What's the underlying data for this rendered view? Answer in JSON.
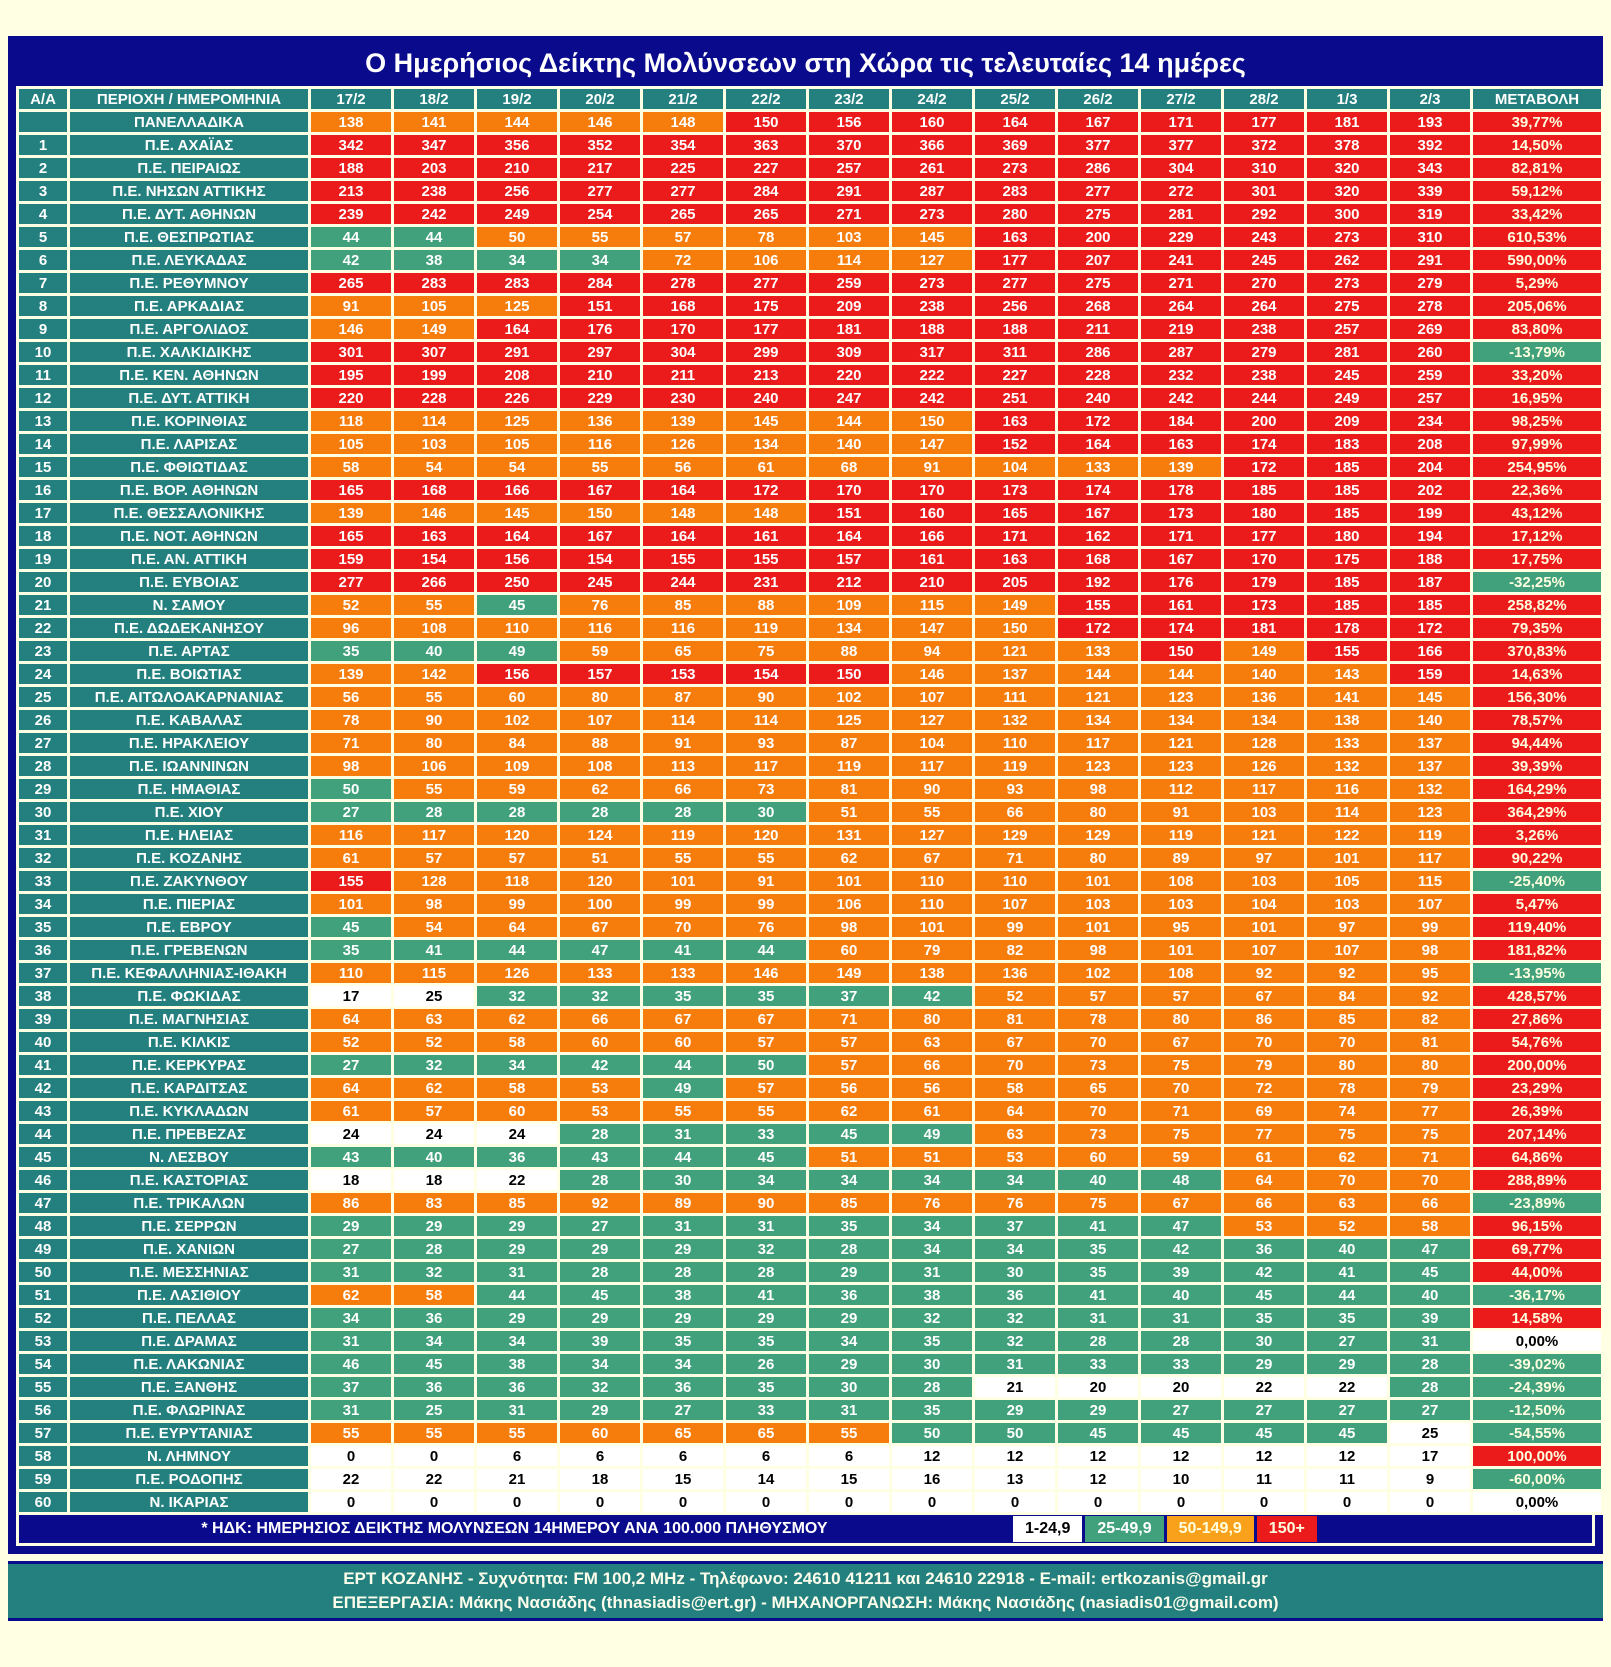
{
  "title": "Ο Ημερήσιος Δείκτης Μολύνσεων στη Χώρα τις τελευταίες 14 ημέρες",
  "columns": [
    "Α/Α",
    "ΠΕΡΙΟΧΗ / ΗΜΕΡΟΜΗΝΙΑ",
    "17/2",
    "18/2",
    "19/2",
    "20/2",
    "21/2",
    "22/2",
    "23/2",
    "24/2",
    "25/2",
    "26/2",
    "27/2",
    "28/2",
    "1/3",
    "2/3",
    "ΜΕΤΑΒΟΛΗ"
  ],
  "panel_row": {
    "label": "ΠΑΝΕΛΛΑΔΙΚΑ",
    "values": [
      138,
      141,
      144,
      146,
      148,
      150,
      156,
      160,
      164,
      167,
      171,
      177,
      181,
      193
    ],
    "change": "39,77%"
  },
  "rows": [
    {
      "n": 1,
      "region": "Π.Ε. ΑΧΑΪΑΣ",
      "values": [
        342,
        347,
        356,
        352,
        354,
        363,
        370,
        366,
        369,
        377,
        377,
        372,
        378,
        392
      ],
      "change": "14,50%"
    },
    {
      "n": 2,
      "region": "Π.Ε. ΠΕΙΡΑΙΩΣ",
      "values": [
        188,
        203,
        210,
        217,
        225,
        227,
        257,
        261,
        273,
        286,
        304,
        310,
        320,
        343
      ],
      "change": "82,81%"
    },
    {
      "n": 3,
      "region": "Π.Ε. ΝΗΣΩΝ ΑΤΤΙΚΗΣ",
      "values": [
        213,
        238,
        256,
        277,
        277,
        284,
        291,
        287,
        283,
        277,
        272,
        301,
        320,
        339
      ],
      "change": "59,12%"
    },
    {
      "n": 4,
      "region": "Π.Ε. ΔΥΤ. ΑΘΗΝΩΝ",
      "values": [
        239,
        242,
        249,
        254,
        265,
        265,
        271,
        273,
        280,
        275,
        281,
        292,
        300,
        319
      ],
      "change": "33,42%"
    },
    {
      "n": 5,
      "region": "Π.Ε. ΘΕΣΠΡΩΤΙΑΣ",
      "values": [
        44,
        44,
        50,
        55,
        57,
        78,
        103,
        145,
        163,
        200,
        229,
        243,
        273,
        310
      ],
      "change": "610,53%"
    },
    {
      "n": 6,
      "region": "Π.Ε. ΛΕΥΚΑΔΑΣ",
      "values": [
        42,
        38,
        34,
        34,
        72,
        106,
        114,
        127,
        177,
        207,
        241,
        245,
        262,
        291
      ],
      "change": "590,00%"
    },
    {
      "n": 7,
      "region": "Π.Ε. ΡΕΘΥΜΝΟΥ",
      "values": [
        265,
        283,
        283,
        284,
        278,
        277,
        259,
        273,
        277,
        275,
        271,
        270,
        273,
        279
      ],
      "change": "5,29%"
    },
    {
      "n": 8,
      "region": "Π.Ε. ΑΡΚΑΔΙΑΣ",
      "values": [
        91,
        105,
        125,
        151,
        168,
        175,
        209,
        238,
        256,
        268,
        264,
        264,
        275,
        278
      ],
      "change": "205,06%"
    },
    {
      "n": 9,
      "region": "Π.Ε. ΑΡΓΟΛΙΔΟΣ",
      "values": [
        146,
        149,
        164,
        176,
        170,
        177,
        181,
        188,
        188,
        211,
        219,
        238,
        257,
        269
      ],
      "change": "83,80%"
    },
    {
      "n": 10,
      "region": "Π.Ε. ΧΑΛΚΙΔΙΚΗΣ",
      "values": [
        301,
        307,
        291,
        297,
        304,
        299,
        309,
        317,
        311,
        286,
        287,
        279,
        281,
        260
      ],
      "change": "-13,79%"
    },
    {
      "n": 11,
      "region": "Π.Ε. ΚΕΝ. ΑΘΗΝΩΝ",
      "values": [
        195,
        199,
        208,
        210,
        211,
        213,
        220,
        222,
        227,
        228,
        232,
        238,
        245,
        259
      ],
      "change": "33,20%"
    },
    {
      "n": 12,
      "region": "Π.Ε. ΔΥΤ. ΑΤΤΙΚΗ",
      "values": [
        220,
        228,
        226,
        229,
        230,
        240,
        247,
        242,
        251,
        240,
        242,
        244,
        249,
        257
      ],
      "change": "16,95%"
    },
    {
      "n": 13,
      "region": "Π.Ε. ΚΟΡΙΝΘΙΑΣ",
      "values": [
        118,
        114,
        125,
        136,
        139,
        145,
        144,
        150,
        163,
        172,
        184,
        200,
        209,
        234
      ],
      "change": "98,25%"
    },
    {
      "n": 14,
      "region": "Π.Ε. ΛΑΡΙΣΑΣ",
      "values": [
        105,
        103,
        105,
        116,
        126,
        134,
        140,
        147,
        152,
        164,
        163,
        174,
        183,
        208
      ],
      "change": "97,99%"
    },
    {
      "n": 15,
      "region": "Π.Ε. ΦΘΙΩΤΙΔΑΣ",
      "values": [
        58,
        54,
        54,
        55,
        56,
        61,
        68,
        91,
        104,
        133,
        139,
        172,
        185,
        204
      ],
      "change": "254,95%"
    },
    {
      "n": 16,
      "region": "Π.Ε. ΒΟΡ. ΑΘΗΝΩΝ",
      "values": [
        165,
        168,
        166,
        167,
        164,
        172,
        170,
        170,
        173,
        174,
        178,
        185,
        185,
        202
      ],
      "change": "22,36%"
    },
    {
      "n": 17,
      "region": "Π.Ε. ΘΕΣΣΑΛΟΝΙΚΗΣ",
      "values": [
        139,
        146,
        145,
        150,
        148,
        148,
        151,
        160,
        165,
        167,
        173,
        180,
        185,
        199
      ],
      "change": "43,12%"
    },
    {
      "n": 18,
      "region": "Π.Ε. ΝΟΤ. ΑΘΗΝΩΝ",
      "values": [
        165,
        163,
        164,
        167,
        164,
        161,
        164,
        166,
        171,
        162,
        171,
        177,
        180,
        194
      ],
      "change": "17,12%"
    },
    {
      "n": 19,
      "region": "Π.Ε. ΑΝ. ΑΤΤΙΚΗ",
      "values": [
        159,
        154,
        156,
        154,
        155,
        155,
        157,
        161,
        163,
        168,
        167,
        170,
        175,
        188
      ],
      "change": "17,75%"
    },
    {
      "n": 20,
      "region": "Π.Ε. ΕΥΒΟΙΑΣ",
      "values": [
        277,
        266,
        250,
        245,
        244,
        231,
        212,
        210,
        205,
        192,
        176,
        179,
        185,
        187
      ],
      "change": "-32,25%"
    },
    {
      "n": 21,
      "region": "Ν. ΣΑΜΟΥ",
      "values": [
        52,
        55,
        45,
        76,
        85,
        88,
        109,
        115,
        149,
        155,
        161,
        173,
        185,
        185
      ],
      "change": "258,82%"
    },
    {
      "n": 22,
      "region": "Π.Ε. ΔΩΔΕΚΑΝΗΣΟΥ",
      "values": [
        96,
        108,
        110,
        116,
        116,
        119,
        134,
        147,
        150,
        172,
        174,
        181,
        178,
        172
      ],
      "change": "79,35%"
    },
    {
      "n": 23,
      "region": "Π.Ε. ΑΡΤΑΣ",
      "values": [
        35,
        40,
        49,
        59,
        65,
        75,
        88,
        94,
        121,
        133,
        150,
        149,
        155,
        166
      ],
      "change": "370,83%"
    },
    {
      "n": 24,
      "region": "Π.Ε. ΒΟΙΩΤΙΑΣ",
      "values": [
        139,
        142,
        156,
        157,
        153,
        154,
        150,
        146,
        137,
        144,
        144,
        140,
        143,
        159
      ],
      "change": "14,63%"
    },
    {
      "n": 25,
      "region": "Π.Ε. ΑΙΤΩΛΟΑΚΑΡΝΑΝΙΑΣ",
      "values": [
        56,
        55,
        60,
        80,
        87,
        90,
        102,
        107,
        111,
        121,
        123,
        136,
        141,
        145
      ],
      "change": "156,30%"
    },
    {
      "n": 26,
      "region": "Π.Ε. ΚΑΒΑΛΑΣ",
      "values": [
        78,
        90,
        102,
        107,
        114,
        114,
        125,
        127,
        132,
        134,
        134,
        134,
        138,
        140
      ],
      "change": "78,57%"
    },
    {
      "n": 27,
      "region": "Π.Ε. ΗΡΑΚΛΕΙΟΥ",
      "values": [
        71,
        80,
        84,
        88,
        91,
        93,
        87,
        104,
        110,
        117,
        121,
        128,
        133,
        137
      ],
      "change": "94,44%"
    },
    {
      "n": 28,
      "region": "Π.Ε. ΙΩΑΝΝΙΝΩΝ",
      "values": [
        98,
        106,
        109,
        108,
        113,
        117,
        119,
        117,
        119,
        123,
        123,
        126,
        132,
        137
      ],
      "change": "39,39%"
    },
    {
      "n": 29,
      "region": "Π.Ε. ΗΜΑΘΙΑΣ",
      "values": [
        50,
        55,
        59,
        62,
        66,
        73,
        81,
        90,
        93,
        98,
        112,
        117,
        116,
        132
      ],
      "change": "164,29%"
    },
    {
      "n": 30,
      "region": "Π.Ε. ΧΙΟΥ",
      "values": [
        27,
        28,
        28,
        28,
        28,
        30,
        51,
        55,
        66,
        80,
        91,
        103,
        114,
        123
      ],
      "change": "364,29%"
    },
    {
      "n": 31,
      "region": "Π.Ε. ΗΛΕΙΑΣ",
      "values": [
        116,
        117,
        120,
        124,
        119,
        120,
        131,
        127,
        129,
        129,
        119,
        121,
        122,
        119
      ],
      "change": "3,26%"
    },
    {
      "n": 32,
      "region": "Π.Ε. ΚΟΖΑΝΗΣ",
      "values": [
        61,
        57,
        57,
        51,
        55,
        55,
        62,
        67,
        71,
        80,
        89,
        97,
        101,
        117
      ],
      "change": "90,22%"
    },
    {
      "n": 33,
      "region": "Π.Ε. ΖΑΚΥΝΘΟΥ",
      "values": [
        155,
        128,
        118,
        120,
        101,
        91,
        101,
        110,
        110,
        101,
        108,
        103,
        105,
        115
      ],
      "change": "-25,40%"
    },
    {
      "n": 34,
      "region": "Π.Ε. ΠΙΕΡΙΑΣ",
      "values": [
        101,
        98,
        99,
        100,
        99,
        99,
        106,
        110,
        107,
        103,
        103,
        104,
        103,
        107
      ],
      "change": "5,47%"
    },
    {
      "n": 35,
      "region": "Π.Ε. ΕΒΡΟΥ",
      "values": [
        45,
        54,
        64,
        67,
        70,
        76,
        98,
        101,
        99,
        101,
        95,
        101,
        97,
        99
      ],
      "change": "119,40%"
    },
    {
      "n": 36,
      "region": "Π.Ε. ΓΡΕΒΕΝΩΝ",
      "values": [
        35,
        41,
        44,
        47,
        41,
        44,
        60,
        79,
        82,
        98,
        101,
        107,
        107,
        98
      ],
      "change": "181,82%"
    },
    {
      "n": 37,
      "region": "Π.Ε. ΚΕΦΑΛΛΗΝΙΑΣ-ΙΘΑΚΗ",
      "values": [
        110,
        115,
        126,
        133,
        133,
        146,
        149,
        138,
        136,
        102,
        108,
        92,
        92,
        95
      ],
      "change": "-13,95%"
    },
    {
      "n": 38,
      "region": "Π.Ε. ΦΩΚΙΔΑΣ",
      "values": [
        17,
        25,
        32,
        32,
        35,
        35,
        37,
        42,
        52,
        57,
        57,
        67,
        84,
        92
      ],
      "change": "428,57%"
    },
    {
      "n": 39,
      "region": "Π.Ε. ΜΑΓΝΗΣΙΑΣ",
      "values": [
        64,
        63,
        62,
        66,
        67,
        67,
        71,
        80,
        81,
        78,
        80,
        86,
        85,
        82
      ],
      "change": "27,86%"
    },
    {
      "n": 40,
      "region": "Π.Ε. ΚΙΛΚΙΣ",
      "values": [
        52,
        52,
        58,
        60,
        60,
        57,
        57,
        63,
        67,
        70,
        67,
        70,
        70,
        81
      ],
      "change": "54,76%"
    },
    {
      "n": 41,
      "region": "Π.Ε. ΚΕΡΚΥΡΑΣ",
      "values": [
        27,
        32,
        34,
        42,
        44,
        50,
        57,
        66,
        70,
        73,
        75,
        79,
        80,
        80
      ],
      "change": "200,00%"
    },
    {
      "n": 42,
      "region": "Π.Ε. ΚΑΡΔΙΤΣΑΣ",
      "values": [
        64,
        62,
        58,
        53,
        49,
        57,
        56,
        56,
        58,
        65,
        70,
        72,
        78,
        79
      ],
      "change": "23,29%"
    },
    {
      "n": 43,
      "region": "Π.Ε. ΚΥΚΛΑΔΩΝ",
      "values": [
        61,
        57,
        60,
        53,
        55,
        55,
        62,
        61,
        64,
        70,
        71,
        69,
        74,
        77
      ],
      "change": "26,39%"
    },
    {
      "n": 44,
      "region": "Π.Ε. ΠΡΕΒΕΖΑΣ",
      "values": [
        24,
        24,
        24,
        28,
        31,
        33,
        45,
        49,
        63,
        73,
        75,
        77,
        75,
        75
      ],
      "change": "207,14%"
    },
    {
      "n": 45,
      "region": "Ν. ΛΕΣΒΟΥ",
      "values": [
        43,
        40,
        36,
        43,
        44,
        45,
        51,
        51,
        53,
        60,
        59,
        61,
        62,
        71
      ],
      "change": "64,86%"
    },
    {
      "n": 46,
      "region": "Π.Ε. ΚΑΣΤΟΡΙΑΣ",
      "values": [
        18,
        18,
        22,
        28,
        30,
        34,
        34,
        34,
        34,
        40,
        48,
        64,
        70,
        70
      ],
      "change": "288,89%"
    },
    {
      "n": 47,
      "region": "Π.Ε. ΤΡΙΚΑΛΩΝ",
      "values": [
        86,
        83,
        85,
        92,
        89,
        90,
        85,
        76,
        76,
        75,
        67,
        66,
        63,
        66
      ],
      "change": "-23,89%"
    },
    {
      "n": 48,
      "region": "Π.Ε. ΣΕΡΡΩΝ",
      "values": [
        29,
        29,
        29,
        27,
        31,
        31,
        35,
        34,
        37,
        41,
        47,
        53,
        52,
        58
      ],
      "change": "96,15%"
    },
    {
      "n": 49,
      "region": "Π.Ε. ΧΑΝΙΩΝ",
      "values": [
        27,
        28,
        29,
        29,
        29,
        32,
        28,
        34,
        34,
        35,
        42,
        36,
        40,
        47
      ],
      "change": "69,77%"
    },
    {
      "n": 50,
      "region": "Π.Ε. ΜΕΣΣΗΝΙΑΣ",
      "values": [
        31,
        32,
        31,
        28,
        28,
        28,
        29,
        31,
        30,
        35,
        39,
        42,
        41,
        45
      ],
      "change": "44,00%"
    },
    {
      "n": 51,
      "region": "Π.Ε. ΛΑΣΙΘΙΟΥ",
      "values": [
        62,
        58,
        44,
        45,
        38,
        41,
        36,
        38,
        36,
        41,
        40,
        45,
        44,
        40
      ],
      "change": "-36,17%"
    },
    {
      "n": 52,
      "region": "Π.Ε. ΠΕΛΛΑΣ",
      "values": [
        34,
        36,
        29,
        29,
        29,
        29,
        29,
        32,
        32,
        31,
        31,
        35,
        35,
        39
      ],
      "change": "14,58%"
    },
    {
      "n": 53,
      "region": "Π.Ε. ΔΡΑΜΑΣ",
      "values": [
        31,
        34,
        34,
        39,
        35,
        35,
        34,
        35,
        32,
        28,
        28,
        30,
        27,
        31
      ],
      "change": "0,00%"
    },
    {
      "n": 54,
      "region": "Π.Ε. ΛΑΚΩΝΙΑΣ",
      "values": [
        46,
        45,
        38,
        34,
        34,
        26,
        29,
        30,
        31,
        33,
        33,
        29,
        29,
        28
      ],
      "change": "-39,02%"
    },
    {
      "n": 55,
      "region": "Π.Ε. ΞΑΝΘΗΣ",
      "values": [
        37,
        36,
        36,
        32,
        36,
        35,
        30,
        28,
        21,
        20,
        20,
        22,
        22,
        28
      ],
      "change": "-24,39%"
    },
    {
      "n": 56,
      "region": "Π.Ε. ΦΛΩΡΙΝΑΣ",
      "values": [
        31,
        25,
        31,
        29,
        27,
        33,
        31,
        35,
        29,
        29,
        27,
        27,
        27,
        27
      ],
      "change": "-12,50%"
    },
    {
      "n": 57,
      "region": "Π.Ε. ΕΥΡΥΤΑΝΙΑΣ",
      "values": [
        55,
        55,
        55,
        60,
        65,
        65,
        55,
        50,
        50,
        45,
        45,
        45,
        45,
        25
      ],
      "change": "-54,55%"
    },
    {
      "n": 58,
      "region": "Ν. ΛΗΜΝΟΥ",
      "values": [
        0,
        0,
        6,
        6,
        6,
        6,
        6,
        12,
        12,
        12,
        12,
        12,
        12,
        17
      ],
      "change": "100,00%"
    },
    {
      "n": 59,
      "region": "Π.Ε. ΡΟΔΟΠΗΣ",
      "values": [
        22,
        22,
        21,
        18,
        15,
        14,
        15,
        16,
        13,
        12,
        10,
        11,
        11,
        9
      ],
      "change": "-60,00%"
    },
    {
      "n": 60,
      "region": "Ν. ΙΚΑΡΙΑΣ",
      "values": [
        0,
        0,
        0,
        0,
        0,
        0,
        0,
        0,
        0,
        0,
        0,
        0,
        0,
        0
      ],
      "change": "0,00%"
    }
  ],
  "color_rule": {
    "white_below": 25,
    "green_below": 50,
    "orange_below": 150,
    "red_from": 150
  },
  "color_overrides": {
    "13:7": "orange",
    "17:3": "orange",
    "22:8": "orange",
    "29:0": "green",
    "41:5": "green",
    "57:7": "green",
    "57:8": "green",
    "38:1": "white",
    "57:13": "white"
  },
  "palette": {
    "navy": "#0A0A8C",
    "teal": "#23807E",
    "green": "#41A17C",
    "orange": "#F67D0C",
    "red": "#EC1B1B",
    "cream": "#FFFFE3",
    "white": "#FFFFFF"
  },
  "legend": {
    "note": "* ΗΔΚ: ΗΜΕΡΗΣΙΟΣ ΔΕΙΚΤΗΣ ΜΟΛΥΝΣΕΩΝ 14ΗΜΕΡΟΥ ΑΝΑ 100.000 ΠΛΗΘΥΣΜΟΥ",
    "items": [
      {
        "label": "1-24,9",
        "color": "white"
      },
      {
        "label": "25-49,9",
        "color": "green"
      },
      {
        "label": "50-149,9",
        "color": "orange"
      },
      {
        "label": "150+",
        "color": "red"
      }
    ]
  },
  "footer": {
    "line1": "ΕΡΤ ΚΟΖΑΝΗΣ - Συχνότητα:  FM 100,2 MHz - Τηλέφωνο: 24610 41211 και 24610 22918 - E-mail: ertkozanis@gmail.gr",
    "line2": "ΕΠΕΞΕΡΓΑΣΙΑ: Μάκης Νασιάδης (thnasiadis@ert.gr) - ΜΗΧΑΝΟΡΓΑΝΩΣΗ: Μάκης Νασιάδης (nasiadis01@gmail.com)"
  }
}
